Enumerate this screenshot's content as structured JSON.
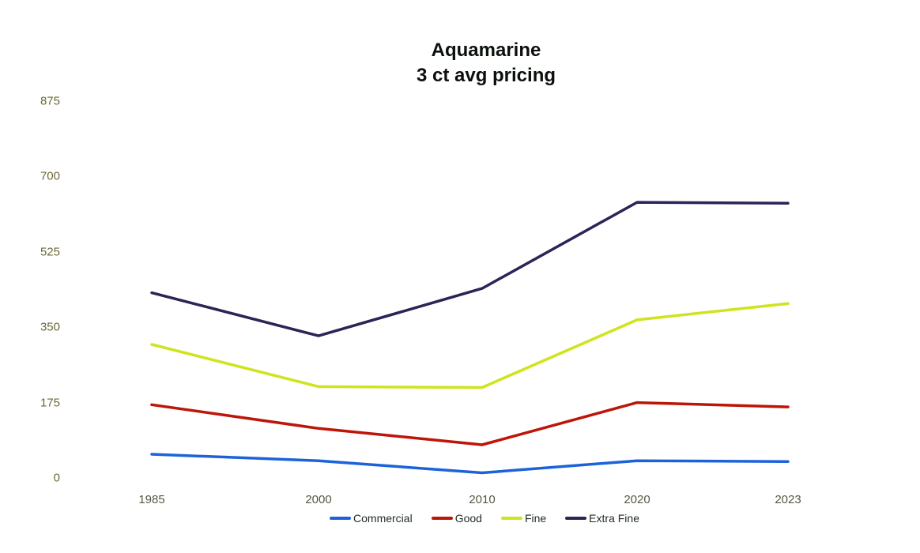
{
  "title": {
    "line1": "Aquamarine",
    "line2": "3 ct avg pricing"
  },
  "chart_data": {
    "type": "line",
    "title": "Aquamarine 3 ct avg pricing",
    "categories": [
      "1985",
      "2000",
      "2010",
      "2020",
      "2023"
    ],
    "series": [
      {
        "name": "Commercial",
        "color": "#1c63d9",
        "values": [
          55,
          40,
          12,
          40,
          38
        ]
      },
      {
        "name": "Good",
        "color": "#bd1507",
        "values": [
          170,
          115,
          77,
          175,
          165
        ]
      },
      {
        "name": "Fine",
        "color": "#cfe41c",
        "values": [
          310,
          212,
          210,
          367,
          405
        ]
      },
      {
        "name": "Extra Fine",
        "color": "#2c2357",
        "values": [
          430,
          330,
          440,
          640,
          638
        ]
      }
    ],
    "xlabel": "",
    "ylabel": "",
    "y_ticks": [
      0,
      175,
      350,
      525,
      700,
      875
    ],
    "ylim": [
      0,
      875
    ],
    "grid": false,
    "axis_lines": false,
    "legend_position": "bottom"
  },
  "colors": {
    "background": "#ffffff",
    "title_text": "#0b100b",
    "y_tick_text": "#6d6836",
    "x_tick_text": "#565642",
    "legend_text": "#1f2a1f"
  }
}
